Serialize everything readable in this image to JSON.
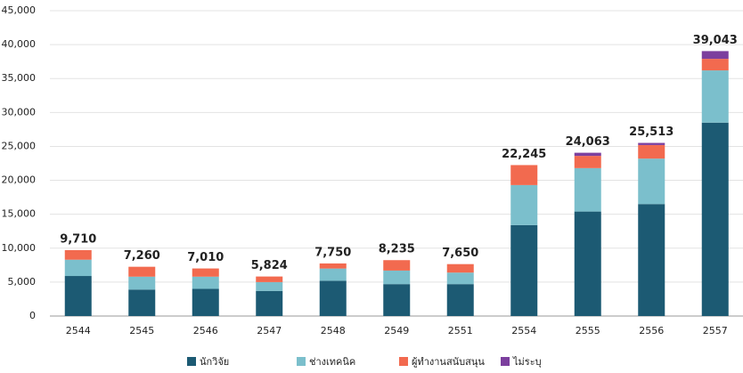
{
  "chart_data": {
    "type": "stacked_bar",
    "categories": [
      "2544",
      "2545",
      "2546",
      "2547",
      "2548",
      "2549",
      "2551",
      "2554",
      "2555",
      "2556",
      "2557"
    ],
    "series": [
      {
        "name": "นักวิจัย",
        "color": "#1c5a73",
        "values": [
          5900,
          3900,
          4000,
          3700,
          5200,
          4700,
          4700,
          13400,
          15400,
          16500,
          28500
        ]
      },
      {
        "name": "ช่างเทคนิค",
        "color": "#7bbfcc",
        "values": [
          2400,
          1900,
          1800,
          1300,
          1800,
          2000,
          1700,
          5900,
          6400,
          6700,
          7700
        ]
      },
      {
        "name": "ผู้ทำงานสนับสนุน",
        "color": "#f26a4f",
        "values": [
          1410,
          1460,
          1210,
          824,
          750,
          1535,
          1250,
          2945,
          1800,
          2000,
          1700
        ]
      },
      {
        "name": "ไม่ระบุ",
        "color": "#7c3f9e",
        "values": [
          0,
          0,
          0,
          0,
          0,
          0,
          0,
          0,
          463,
          313,
          1143
        ]
      }
    ],
    "totals": [
      9710,
      7260,
      7010,
      5824,
      7750,
      8235,
      7650,
      22245,
      24063,
      25513,
      39043
    ],
    "total_labels": [
      "9,710",
      "7,260",
      "7,010",
      "5,824",
      "7,750",
      "8,235",
      "7,650",
      "22,245",
      "24,063",
      "25,513",
      "39,043"
    ],
    "ylim": [
      0,
      45000
    ],
    "yticks": [
      0,
      {
        "value": 5000,
        "label": "5,000"
      },
      {
        "value": 10000,
        "label": "10,000"
      },
      {
        "value": 15000,
        "label": "15,000"
      },
      {
        "value": 20000,
        "label": "20,000"
      },
      {
        "value": 25000,
        "label": "25,000"
      },
      {
        "value": 30000,
        "label": "30,000"
      },
      {
        "value": 35000,
        "label": "35,000"
      },
      {
        "value": 40000,
        "label": "40,000"
      },
      {
        "value": 45000,
        "label": "45,000"
      }
    ],
    "grid": true,
    "legend": "bottom"
  }
}
